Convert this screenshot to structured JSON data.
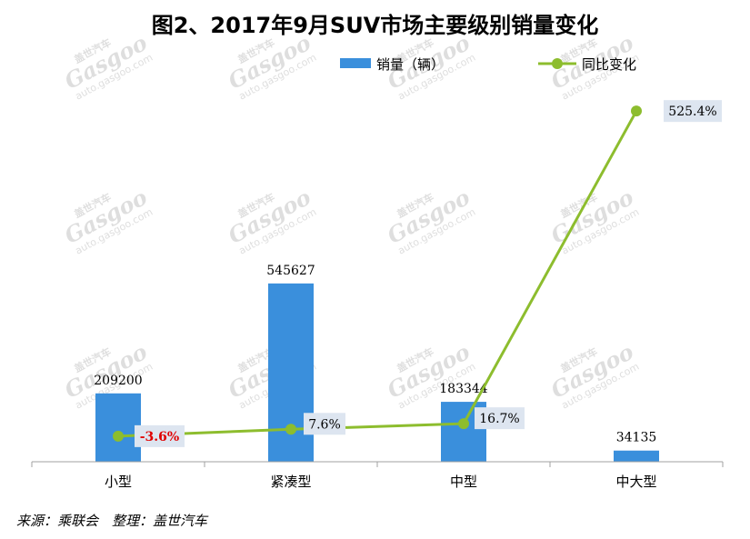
{
  "title": "图2、2017年9月SUV市场主要级别销量变化",
  "source": "来源：乘联会　整理：盖世汽车",
  "watermark": {
    "brand": "Gasgoo",
    "cn": "盖世汽车",
    "url": "auto.gasgoo.com"
  },
  "colors": {
    "bar": "#3a8fdc",
    "line": "#8dbd2e",
    "negative_label": "#e00000",
    "label_box": "#dde5f0"
  },
  "chart_data": {
    "type": "bar",
    "categories": [
      "小型",
      "紧凑型",
      "中型",
      "中大型"
    ],
    "series": [
      {
        "name": "销量（辆）",
        "type": "bar",
        "values": [
          209200,
          545627,
          183344,
          34135
        ]
      },
      {
        "name": "同比变化",
        "type": "line",
        "values": [
          -3.6,
          7.6,
          16.7,
          525.4
        ],
        "labels": [
          "-3.6%",
          "7.6%",
          "16.7%",
          "525.4%"
        ]
      }
    ],
    "y_bar_range": [
      0,
      600000
    ],
    "y_line_range": [
      -60,
      570
    ],
    "grid": false,
    "legend_position": "top"
  }
}
